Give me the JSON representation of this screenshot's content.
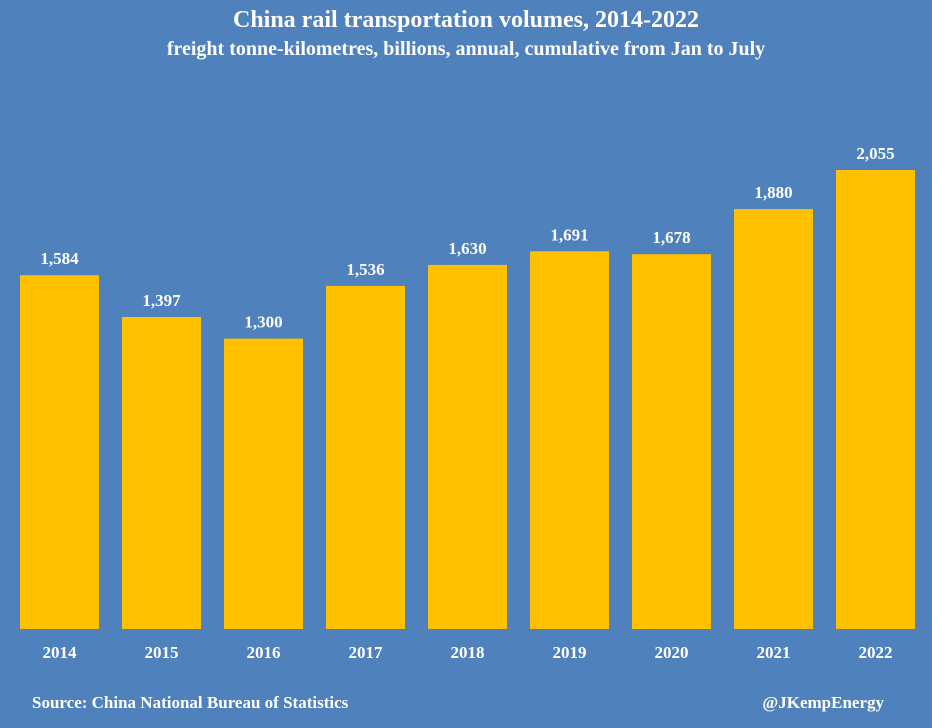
{
  "chart_data": {
    "type": "bar",
    "title": "China rail transportation volumes, 2014-2022",
    "subtitle": "freight tonne-kilometres, billions, annual, cumulative from Jan to July",
    "categories": [
      "2014",
      "2015",
      "2016",
      "2017",
      "2018",
      "2019",
      "2020",
      "2021",
      "2022"
    ],
    "values": [
      1584,
      1397,
      1300,
      1536,
      1630,
      1691,
      1678,
      1880,
      2055
    ],
    "value_labels": [
      "1,584",
      "1,397",
      "1,300",
      "1,536",
      "1,630",
      "1,691",
      "1,678",
      "1,880",
      "2,055"
    ],
    "ylim": [
      0,
      2055
    ],
    "grid": false,
    "legend": "none",
    "colors": {
      "background": "#4f81bd",
      "bar": "#ffc000",
      "text": "#ffffff"
    }
  },
  "footer": {
    "source": "Source: China National Bureau of Statistics",
    "credit": "@JKempEnergy"
  }
}
